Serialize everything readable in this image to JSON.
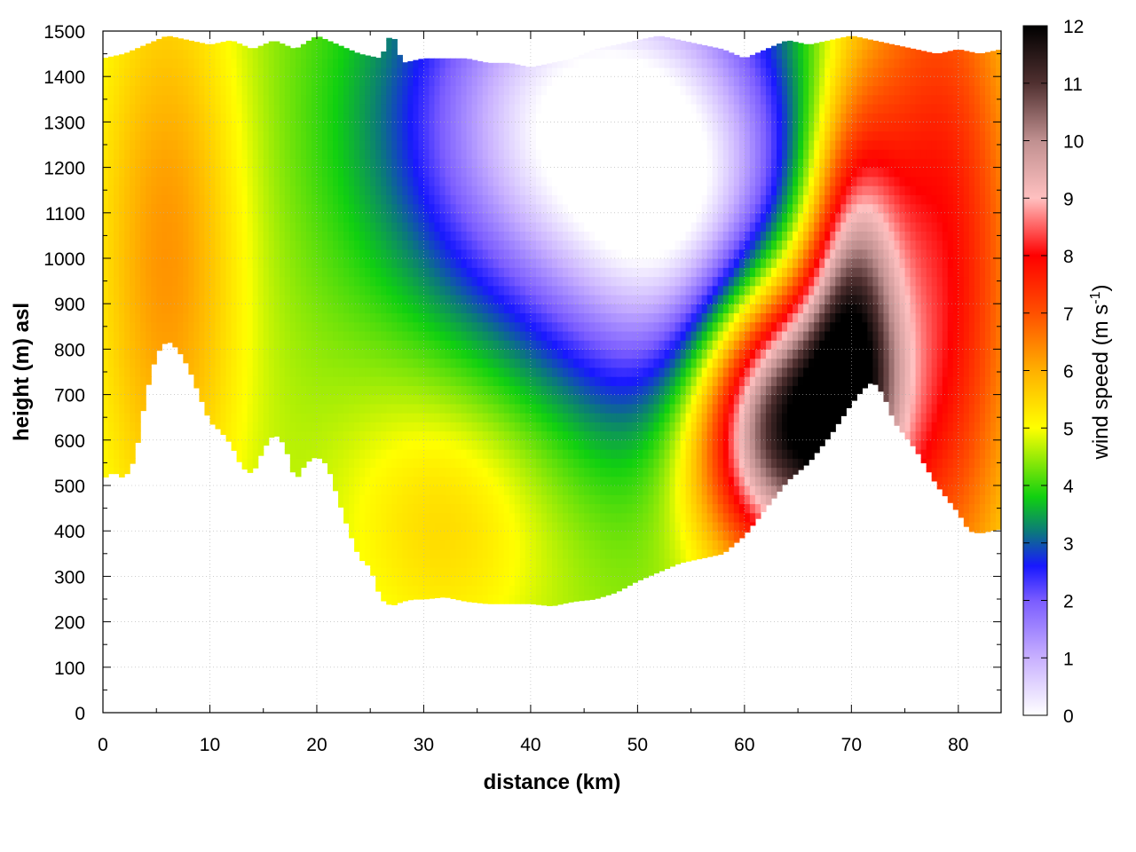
{
  "chart_data": {
    "type": "heatmap",
    "title": "",
    "xlabel": "distance (km)",
    "ylabel": "height (m) asl",
    "colorbar": {
      "label_main": "wind speed (m s",
      "label_sup": "-1",
      "label_close": ")",
      "range": [
        0,
        12
      ],
      "ticks": [
        0,
        1,
        2,
        3,
        4,
        5,
        6,
        7,
        8,
        9,
        10,
        11,
        12
      ]
    },
    "xlim": [
      0,
      84
    ],
    "ylim": [
      0,
      1500
    ],
    "x_ticks": [
      0,
      10,
      20,
      30,
      40,
      50,
      60,
      70,
      80
    ],
    "y_ticks": [
      0,
      100,
      200,
      300,
      400,
      500,
      600,
      700,
      800,
      900,
      1000,
      1100,
      1200,
      1300,
      1400,
      1500
    ],
    "grid": true,
    "colormap": [
      {
        "v": 0,
        "c": "#ffffff"
      },
      {
        "v": 1,
        "c": "#c8b0ff"
      },
      {
        "v": 2,
        "c": "#7a5cff"
      },
      {
        "v": 2.6,
        "c": "#1818ff"
      },
      {
        "v": 3.2,
        "c": "#0b7a7a"
      },
      {
        "v": 3.8,
        "c": "#10d010"
      },
      {
        "v": 5,
        "c": "#ffff00"
      },
      {
        "v": 6,
        "c": "#ffb000"
      },
      {
        "v": 7,
        "c": "#ff5000"
      },
      {
        "v": 8,
        "c": "#ff0000"
      },
      {
        "v": 9,
        "c": "#ffc0c0"
      },
      {
        "v": 10,
        "c": "#c09090"
      },
      {
        "v": 11,
        "c": "#503030"
      },
      {
        "v": 12,
        "c": "#000000"
      }
    ],
    "terrain": {
      "x": [
        0,
        1,
        2,
        3,
        4,
        5,
        6,
        7,
        8,
        9,
        10,
        11,
        12,
        13,
        14,
        15,
        16,
        17,
        18,
        19,
        20,
        21,
        22,
        23,
        24,
        25,
        26,
        27,
        28,
        29,
        30,
        32,
        34,
        36,
        38,
        40,
        42,
        44,
        46,
        48,
        50,
        51,
        52,
        53,
        54,
        56,
        58,
        60,
        62,
        64,
        66,
        68,
        70,
        71,
        72,
        73,
        74,
        76,
        78,
        80,
        81,
        82,
        83,
        84
      ],
      "y": [
        515,
        530,
        515,
        560,
        700,
        790,
        820,
        800,
        760,
        700,
        640,
        620,
        590,
        540,
        525,
        580,
        615,
        590,
        510,
        550,
        565,
        545,
        470,
        400,
        340,
        320,
        250,
        235,
        245,
        250,
        250,
        255,
        245,
        240,
        240,
        240,
        235,
        245,
        250,
        265,
        290,
        300,
        310,
        320,
        330,
        340,
        350,
        390,
        450,
        510,
        550,
        610,
        680,
        710,
        730,
        700,
        640,
        580,
        500,
        440,
        400,
        395,
        400,
        405
      ]
    },
    "top": {
      "x": [
        0,
        2,
        4,
        6,
        8,
        10,
        12,
        14,
        16,
        18,
        20,
        22,
        24,
        26,
        27,
        28,
        30,
        32,
        34,
        36,
        38,
        40,
        42,
        44,
        46,
        48,
        50,
        52,
        54,
        56,
        58,
        60,
        62,
        64,
        66,
        68,
        70,
        72,
        74,
        76,
        78,
        80,
        82,
        84
      ],
      "y": [
        1440,
        1450,
        1470,
        1490,
        1480,
        1470,
        1480,
        1460,
        1480,
        1460,
        1490,
        1470,
        1450,
        1440,
        1500,
        1430,
        1440,
        1440,
        1440,
        1430,
        1430,
        1420,
        1430,
        1440,
        1460,
        1470,
        1480,
        1490,
        1480,
        1470,
        1460,
        1440,
        1460,
        1480,
        1470,
        1480,
        1490,
        1480,
        1470,
        1460,
        1450,
        1460,
        1450,
        1460
      ]
    },
    "field_profile_x": [
      0,
      3,
      6,
      9,
      12,
      15,
      18,
      21,
      24,
      27,
      30,
      33,
      36,
      39,
      42,
      45,
      48,
      51,
      52,
      55,
      58,
      61,
      64,
      67,
      70,
      72,
      73,
      76,
      79,
      82,
      84
    ]
  }
}
